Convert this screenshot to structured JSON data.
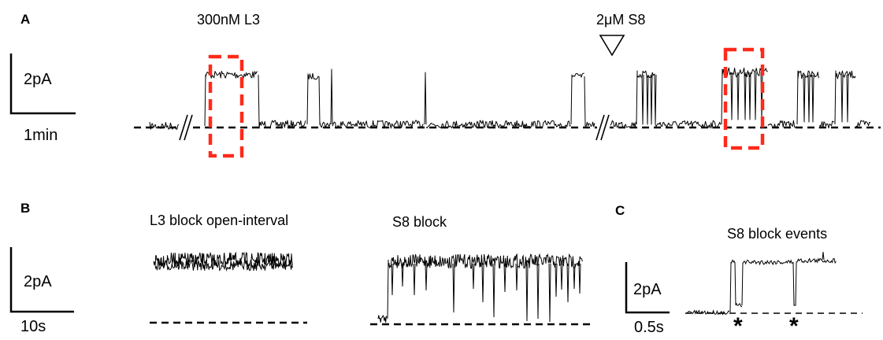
{
  "panels": {
    "a": {
      "letter": "A",
      "drug1": "300nM L3",
      "drug2": "2μM S8",
      "scale_y": "2pA",
      "scale_x": "1min"
    },
    "b": {
      "letter": "B",
      "title1": "L3 block open-interval",
      "title2": "S8 block",
      "scale_y": "2pA",
      "scale_x": "10s"
    },
    "c": {
      "letter": "C",
      "title": "S8 block events",
      "scale_y": "2pA",
      "scale_x": "0.5s",
      "marker1": "*",
      "marker2": "*"
    }
  },
  "colors": {
    "trace": "#000000",
    "highlight_box": "#ff2a1a"
  }
}
